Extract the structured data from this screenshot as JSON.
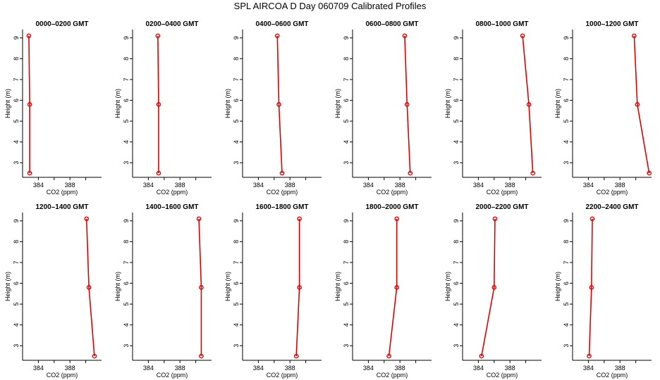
{
  "figure": {
    "title": "SPL AIRCOA D  Day 060709  Calibrated Profiles"
  },
  "colors": {
    "series": "#dd0000",
    "axis": "#000000"
  },
  "chart_data": [
    {
      "type": "line",
      "title": "0000–0200 GMT",
      "xlabel": "CO2 (ppm)",
      "ylabel": "Height (m)",
      "xlim": [
        382,
        392
      ],
      "ylim": [
        2.3,
        9.4
      ],
      "xticks": [
        384,
        388
      ],
      "yticks": [
        3,
        4,
        5,
        6,
        7,
        8,
        9
      ],
      "x": [
        382.8,
        382.9,
        382.9
      ],
      "y": [
        9.1,
        5.8,
        2.5
      ]
    },
    {
      "type": "line",
      "title": "0200–0400 GMT",
      "xlabel": "CO2 (ppm)",
      "ylabel": "Height (m)",
      "xlim": [
        382,
        392
      ],
      "ylim": [
        2.3,
        9.4
      ],
      "xticks": [
        384,
        388
      ],
      "yticks": [
        3,
        4,
        5,
        6,
        7,
        8,
        9
      ],
      "x": [
        385.2,
        385.3,
        385.3
      ],
      "y": [
        9.1,
        5.8,
        2.5
      ]
    },
    {
      "type": "line",
      "title": "0400–0600 GMT",
      "xlabel": "CO2 (ppm)",
      "ylabel": "Height (m)",
      "xlim": [
        382,
        392
      ],
      "ylim": [
        2.3,
        9.4
      ],
      "xticks": [
        384,
        388
      ],
      "yticks": [
        3,
        4,
        5,
        6,
        7,
        8,
        9
      ],
      "x": [
        386.4,
        386.6,
        387.0
      ],
      "y": [
        9.1,
        5.8,
        2.5
      ]
    },
    {
      "type": "line",
      "title": "0600–0800 GMT",
      "xlabel": "CO2 (ppm)",
      "ylabel": "Height (m)",
      "xlim": [
        382,
        392
      ],
      "ylim": [
        2.3,
        9.4
      ],
      "xticks": [
        384,
        388
      ],
      "yticks": [
        3,
        4,
        5,
        6,
        7,
        8,
        9
      ],
      "x": [
        388.6,
        388.9,
        389.3
      ],
      "y": [
        9.1,
        5.8,
        2.5
      ]
    },
    {
      "type": "line",
      "title": "0800–1000 GMT",
      "xlabel": "CO2 (ppm)",
      "ylabel": "Height (m)",
      "xlim": [
        382,
        392
      ],
      "ylim": [
        2.3,
        9.4
      ],
      "xticks": [
        384,
        388
      ],
      "yticks": [
        3,
        4,
        5,
        6,
        7,
        8,
        9
      ],
      "x": [
        389.6,
        390.4,
        390.9
      ],
      "y": [
        9.1,
        5.8,
        2.5
      ]
    },
    {
      "type": "line",
      "title": "1000–1200 GMT",
      "xlabel": "CO2 (ppm)",
      "ylabel": "Height (m)",
      "xlim": [
        382,
        392
      ],
      "ylim": [
        2.3,
        9.4
      ],
      "xticks": [
        384,
        388
      ],
      "yticks": [
        3,
        4,
        5,
        6,
        7,
        8,
        9
      ],
      "x": [
        389.8,
        390.2,
        391.7
      ],
      "y": [
        9.1,
        5.8,
        2.5
      ]
    },
    {
      "type": "line",
      "title": "1200–1400 GMT",
      "xlabel": "CO2 (ppm)",
      "ylabel": "Height (m)",
      "xlim": [
        382,
        392
      ],
      "ylim": [
        2.3,
        9.4
      ],
      "xticks": [
        384,
        388
      ],
      "yticks": [
        3,
        4,
        5,
        6,
        7,
        8,
        9
      ],
      "x": [
        390.1,
        390.4,
        391.1
      ],
      "y": [
        9.1,
        5.8,
        2.5
      ]
    },
    {
      "type": "line",
      "title": "1400–1600 GMT",
      "xlabel": "CO2 (ppm)",
      "ylabel": "Height (m)",
      "xlim": [
        382,
        392
      ],
      "ylim": [
        2.3,
        9.4
      ],
      "xticks": [
        384,
        388
      ],
      "yticks": [
        3,
        4,
        5,
        6,
        7,
        8,
        9
      ],
      "x": [
        390.4,
        390.7,
        390.7
      ],
      "y": [
        9.1,
        5.8,
        2.5
      ]
    },
    {
      "type": "line",
      "title": "1600–1800 GMT",
      "xlabel": "CO2 (ppm)",
      "ylabel": "Height (m)",
      "xlim": [
        382,
        392
      ],
      "ylim": [
        2.3,
        9.4
      ],
      "xticks": [
        384,
        388
      ],
      "yticks": [
        3,
        4,
        5,
        6,
        7,
        8,
        9
      ],
      "x": [
        389.2,
        389.2,
        388.8
      ],
      "y": [
        9.1,
        5.8,
        2.5
      ]
    },
    {
      "type": "line",
      "title": "1800–2000 GMT",
      "xlabel": "CO2 (ppm)",
      "ylabel": "Height (m)",
      "xlim": [
        382,
        392
      ],
      "ylim": [
        2.3,
        9.4
      ],
      "xticks": [
        384,
        388
      ],
      "yticks": [
        3,
        4,
        5,
        6,
        7,
        8,
        9
      ],
      "x": [
        387.6,
        387.6,
        386.6
      ],
      "y": [
        9.1,
        5.8,
        2.5
      ]
    },
    {
      "type": "line",
      "title": "2000–2200 GMT",
      "xlabel": "CO2 (ppm)",
      "ylabel": "Height (m)",
      "xlim": [
        382,
        392
      ],
      "ylim": [
        2.3,
        9.4
      ],
      "xticks": [
        384,
        388
      ],
      "yticks": [
        3,
        4,
        5,
        6,
        7,
        8,
        9
      ],
      "x": [
        386.1,
        386.0,
        384.4
      ],
      "y": [
        9.1,
        5.8,
        2.5
      ]
    },
    {
      "type": "line",
      "title": "2200–2400 GMT",
      "xlabel": "CO2 (ppm)",
      "ylabel": "Height (m)",
      "xlim": [
        382,
        392
      ],
      "ylim": [
        2.3,
        9.4
      ],
      "xticks": [
        384,
        388
      ],
      "yticks": [
        3,
        4,
        5,
        6,
        7,
        8,
        9
      ],
      "x": [
        384.5,
        384.4,
        384.1
      ],
      "y": [
        9.1,
        5.8,
        2.5
      ]
    }
  ]
}
